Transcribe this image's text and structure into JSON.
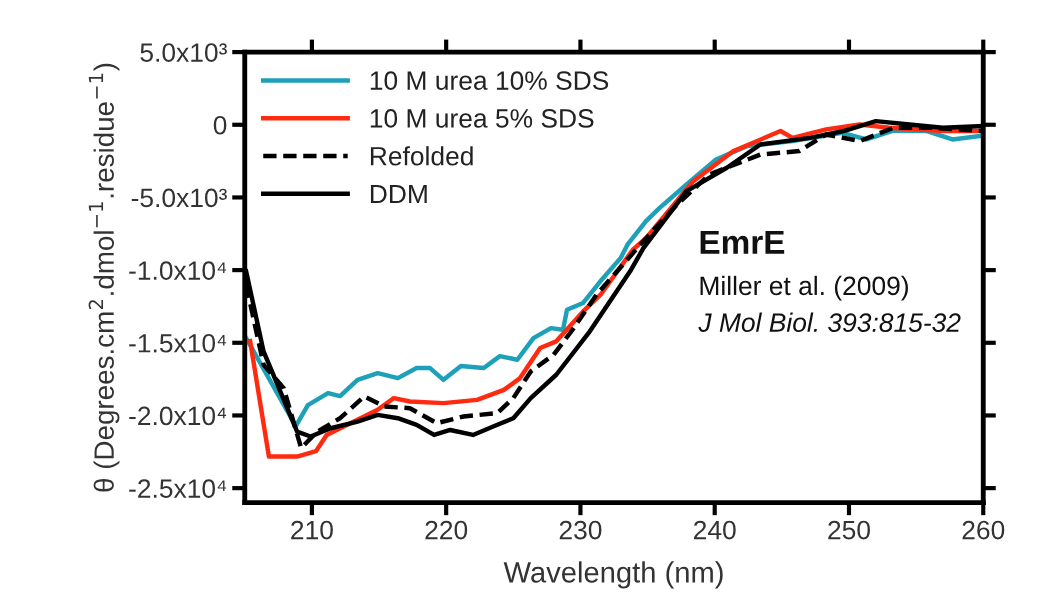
{
  "chart_data": {
    "type": "line",
    "xlabel": "Wavelength (nm)",
    "ylabel": "θ (Degrees.cm$^{2}$.dmol$^{−1}$.residue$^{−1}$)",
    "xlim": [
      205,
      260
    ],
    "xticks": [
      210,
      220,
      230,
      240,
      250,
      260
    ],
    "ylim": [
      -26000,
      5000
    ],
    "yticks": [
      {
        "value": 5000,
        "label": "5.0x10³"
      },
      0,
      {
        "value": -5000,
        "label": "-5.0x10³"
      },
      {
        "value": -10000,
        "label": "-1.0x10⁴"
      },
      {
        "value": -15000,
        "label": "-1.5x10⁴"
      },
      {
        "value": -20000,
        "label": "-2.0x10⁴"
      },
      {
        "value": -25000,
        "label": "-2.5x10⁴"
      }
    ],
    "grid": false,
    "legend": "top left",
    "marker": "none",
    "annotations": [
      "EmrE",
      "Miller et al. (2009)",
      "J Mol Biol. 393:815-32"
    ],
    "series": [
      {
        "name": "10 M urea 10% SDS",
        "color": "#1ea0b8",
        "line_style": "solid",
        "x": [
          205.1,
          208.8,
          209.7,
          211.2,
          212.1,
          213.4,
          214.9,
          216.4,
          217.8,
          218.8,
          219.8,
          221.1,
          222.8,
          224.0,
          225.3,
          226.5,
          227.8,
          228.7,
          229.0,
          230.2,
          231.5,
          233.0,
          233.5,
          234.9,
          235.9,
          237.9,
          240.1,
          242.4,
          245.8,
          249.5,
          251.3,
          253.3,
          255.8,
          257.7,
          259.9
        ],
        "values": [
          -14670,
          -20740,
          -19290,
          -18460,
          -18670,
          -17550,
          -17090,
          -17430,
          -16740,
          -16740,
          -17550,
          -16600,
          -16740,
          -15920,
          -16170,
          -14680,
          -13990,
          -14100,
          -12730,
          -12260,
          -10750,
          -9160,
          -8250,
          -6610,
          -5720,
          -4110,
          -2390,
          -1470,
          -1120,
          -550,
          -1010,
          -410,
          -430,
          -1010,
          -760
        ]
      },
      {
        "name": "10 M urea 5% SDS",
        "color": "#ff2a10",
        "line_style": "solid",
        "x": [
          205.4,
          206.8,
          208.9,
          210.3,
          211.1,
          212.6,
          214.9,
          216.1,
          217.3,
          219.8,
          222.3,
          224.3,
          225.5,
          227.0,
          228.2,
          230.2,
          231.5,
          233.9,
          234.9,
          238.4,
          241.4,
          244.9,
          245.8,
          248.3,
          250.8,
          253.0,
          257.0,
          260.0
        ],
        "values": [
          -14880,
          -22830,
          -22830,
          -22460,
          -21340,
          -20650,
          -19610,
          -18810,
          -19040,
          -19150,
          -18930,
          -18240,
          -17430,
          -15360,
          -14900,
          -12840,
          -11690,
          -8600,
          -7790,
          -3880,
          -1810,
          -430,
          -900,
          -320,
          20,
          -210,
          -430,
          -430
        ]
      },
      {
        "name": "Refolded",
        "color": "#000000",
        "line_style": "dashed",
        "x": [
          205.1,
          206.4,
          207.9,
          209.2,
          210.4,
          212.1,
          213.9,
          215.4,
          217.3,
          219.3,
          221.3,
          223.8,
          225.0,
          226.3,
          228.0,
          229.5,
          231.2,
          234.9,
          237.2,
          239.6,
          243.4,
          246.3,
          248.3,
          250.8,
          253.3,
          256.2,
          260.0
        ],
        "values": [
          -11000,
          -16510,
          -18120,
          -22250,
          -21110,
          -20190,
          -18690,
          -19380,
          -19500,
          -20530,
          -20070,
          -19840,
          -18810,
          -16970,
          -15830,
          -13990,
          -11690,
          -7790,
          -5490,
          -3420,
          -2050,
          -1810,
          -670,
          -1120,
          -210,
          -210,
          -430
        ]
      },
      {
        "name": "DDM",
        "color": "#000000",
        "line_style": "solid",
        "x": [
          205.1,
          206.4,
          208.9,
          209.9,
          211.4,
          213.4,
          214.9,
          216.4,
          217.8,
          219.1,
          220.3,
          222.0,
          223.5,
          225.0,
          226.3,
          228.2,
          230.7,
          233.7,
          234.7,
          237.9,
          240.9,
          243.4,
          247.1,
          249.6,
          252.0,
          254.5,
          257.0,
          260.0
        ],
        "values": [
          -10080,
          -15590,
          -21110,
          -21450,
          -20880,
          -20420,
          -19960,
          -20190,
          -20650,
          -21340,
          -21000,
          -21340,
          -20760,
          -20190,
          -18810,
          -17200,
          -14210,
          -10080,
          -8470,
          -4570,
          -2960,
          -1360,
          -900,
          -430,
          250,
          20,
          -210,
          -90
        ]
      }
    ]
  }
}
